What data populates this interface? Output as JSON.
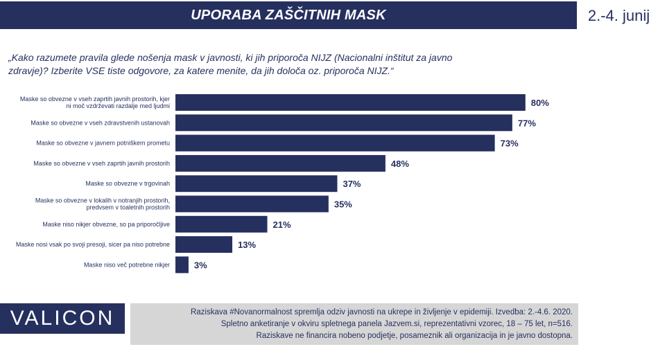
{
  "header": {
    "title": "UPORABA ZAŠČITNIH MASK",
    "date": "2.-4. junij"
  },
  "question": "„Kako razumete pravila glede nošenja mask v javnosti, ki jih priporoča NIJZ (Nacionalni inštitut za javno zdravje)? Izberite VSE tiste odgovore, za katere menite, da jih določa oz. priporoča NIJZ.“",
  "colors": {
    "primary": "#26305f",
    "footer_bg": "#d6d6d6"
  },
  "chart_data": {
    "type": "bar",
    "orientation": "horizontal",
    "categories": [
      [
        "Maske so obvezne v vseh zaprtih javnih prostorih, kjer",
        "ni moč vzdrževati razdalje med ljudmi"
      ],
      [
        "Maske so obvezne v vseh zdravstvenih ustanovah"
      ],
      [
        "Maske so obvezne v javnem potniškem prometu"
      ],
      [
        "Maske so obvezne v vseh zaprtih javnih prostorih"
      ],
      [
        "Maske so obvezne v trgovinah"
      ],
      [
        "Maske so obvezne v lokalih v notranjih prostorih,",
        "predvsem v toaletnih prostorih"
      ],
      [
        "Maske niso nikjer obvezne, so pa priporočljive"
      ],
      [
        "Maske nosi vsak po svoji presoji, sicer pa niso potrebne"
      ],
      [
        "Maske niso več potrebne nikjer"
      ]
    ],
    "values": [
      80,
      77,
      73,
      48,
      37,
      35,
      21,
      13,
      3
    ],
    "data_labels": [
      "80%",
      "77%",
      "73%",
      "48%",
      "37%",
      "35%",
      "21%",
      "13%",
      "3%"
    ],
    "xlim": [
      0,
      100
    ],
    "grid": false,
    "bar_color": "#26305f"
  },
  "brand": {
    "logo_text": "VALICON"
  },
  "footer": {
    "lines": [
      "Raziskava #Novanormalnost spremlja odziv javnosti na ukrepe in življenje v epidemiji. Izvedba: 2.-4.6. 2020.",
      "Spletno anketiranje v okviru spletnega panela Jazvem.si, reprezentativni vzorec, 18 – 75 let, n=516.",
      "Raziskave ne financira nobeno podjetje, posameznik ali organizacija in je javno dostopna."
    ]
  }
}
